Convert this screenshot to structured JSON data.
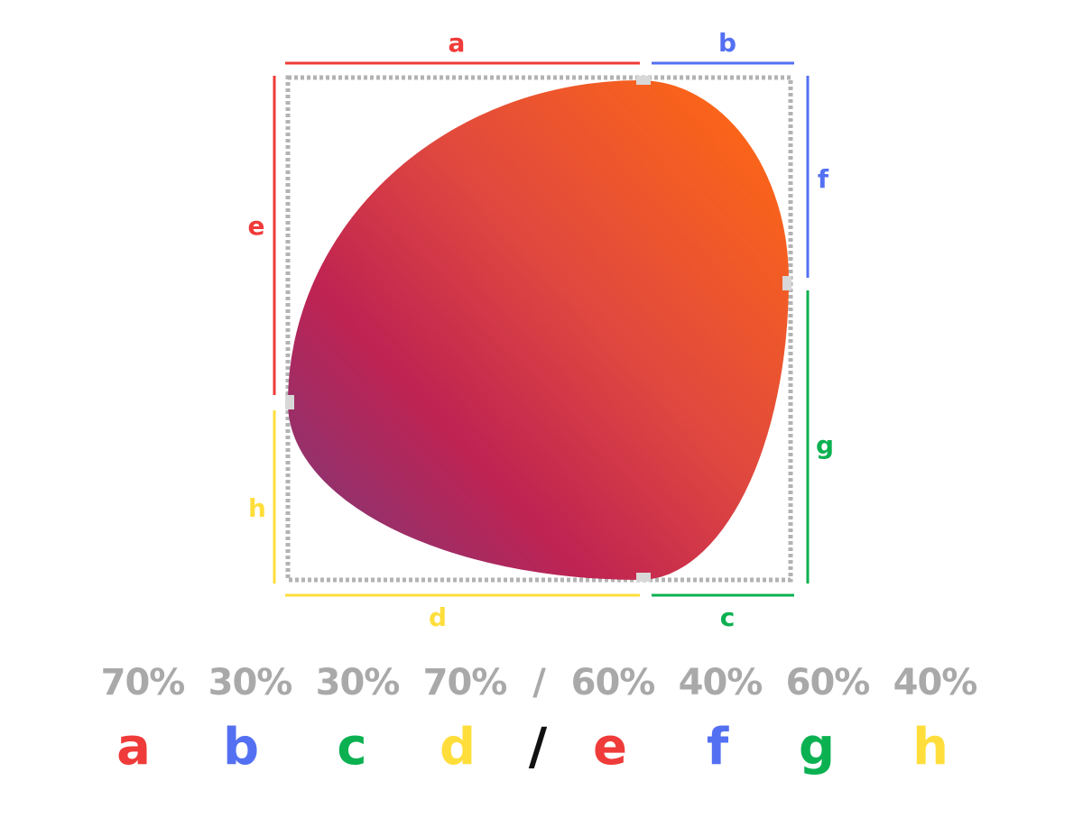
{
  "colors": {
    "red": "#ef3b39",
    "blue": "#5470f2",
    "green": "#0bb151",
    "yellow": "#ffde3b",
    "black": "#111111",
    "gray": "#a9a9a9",
    "blob_top": "#ff6a12",
    "blob_mid": "#bf2352",
    "blob_bottom": "#8e3370"
  },
  "segments": {
    "a": "a",
    "b": "b",
    "c": "c",
    "d": "d",
    "e": "e",
    "f": "f",
    "g": "g",
    "h": "h"
  },
  "formula": {
    "values": [
      "70%",
      "30%",
      "30%",
      "70%",
      "/",
      "60%",
      "40%",
      "60%",
      "40%"
    ],
    "letters": [
      "a",
      "b",
      "c",
      "d",
      "/",
      "e",
      "f",
      "g",
      "h"
    ]
  }
}
